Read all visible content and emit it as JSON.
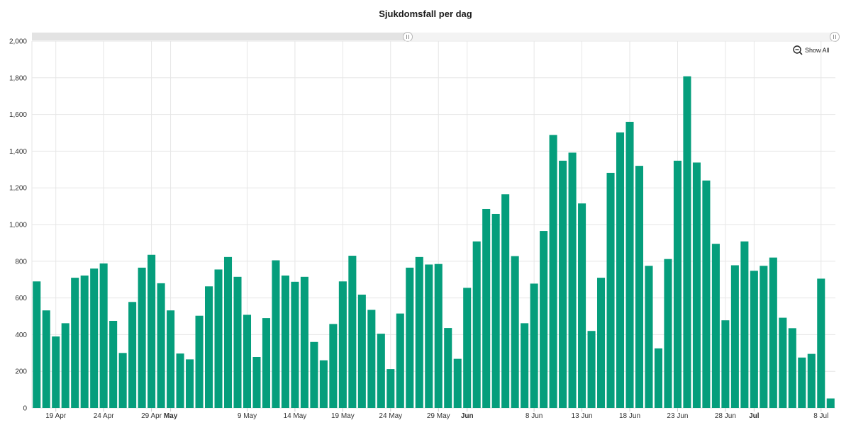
{
  "chart_data": {
    "type": "bar",
    "title": "Sjukdomsfall per dag",
    "xlabel": "",
    "ylabel": "",
    "ylim": [
      0,
      2000
    ],
    "y_ticks": [
      0,
      200,
      400,
      600,
      800,
      1000,
      1200,
      1400,
      1600,
      1800,
      2000
    ],
    "y_tick_labels": [
      "0",
      "200",
      "400",
      "600",
      "800",
      "1,000",
      "1,200",
      "1,400",
      "1,600",
      "1,800",
      "2,000"
    ],
    "x_tick_labels": [
      {
        "label": "19 Apr",
        "index": 2,
        "bold": false
      },
      {
        "label": "24 Apr",
        "index": 7,
        "bold": false
      },
      {
        "label": "29 Apr",
        "index": 12,
        "bold": false
      },
      {
        "label": "May",
        "index": 14,
        "bold": true
      },
      {
        "label": "9 May",
        "index": 22,
        "bold": false
      },
      {
        "label": "14 May",
        "index": 27,
        "bold": false
      },
      {
        "label": "19 May",
        "index": 32,
        "bold": false
      },
      {
        "label": "24 May",
        "index": 37,
        "bold": false
      },
      {
        "label": "29 May",
        "index": 42,
        "bold": false
      },
      {
        "label": "Jun",
        "index": 45,
        "bold": true
      },
      {
        "label": "8 Jun",
        "index": 52,
        "bold": false
      },
      {
        "label": "13 Jun",
        "index": 57,
        "bold": false
      },
      {
        "label": "18 Jun",
        "index": 62,
        "bold": false
      },
      {
        "label": "23 Jun",
        "index": 67,
        "bold": false
      },
      {
        "label": "28 Jun",
        "index": 72,
        "bold": false
      },
      {
        "label": "Jul",
        "index": 75,
        "bold": true
      },
      {
        "label": "8 Jul",
        "index": 82,
        "bold": false
      }
    ],
    "grid": true,
    "values": [
      690,
      532,
      390,
      462,
      710,
      722,
      760,
      788,
      475,
      300,
      578,
      765,
      835,
      680,
      532,
      297,
      265,
      503,
      663,
      755,
      823,
      715,
      508,
      278,
      490,
      805,
      722,
      688,
      715,
      360,
      260,
      458,
      690,
      830,
      618,
      535,
      405,
      212,
      515,
      765,
      823,
      782,
      785,
      436,
      268,
      655,
      908,
      1085,
      1058,
      1165,
      828,
      462,
      678,
      965,
      1488,
      1348,
      1392,
      1115,
      420,
      710,
      1282,
      1502,
      1560,
      1320,
      775,
      325,
      812,
      1348,
      1808,
      1338,
      1240,
      895,
      478,
      778,
      908,
      748,
      775,
      820,
      492,
      435,
      275,
      295,
      705,
      52
    ],
    "color": "#059e7c"
  },
  "controls": {
    "show_all_label": "Show All",
    "zoom_icon": "zoom-out-icon"
  }
}
